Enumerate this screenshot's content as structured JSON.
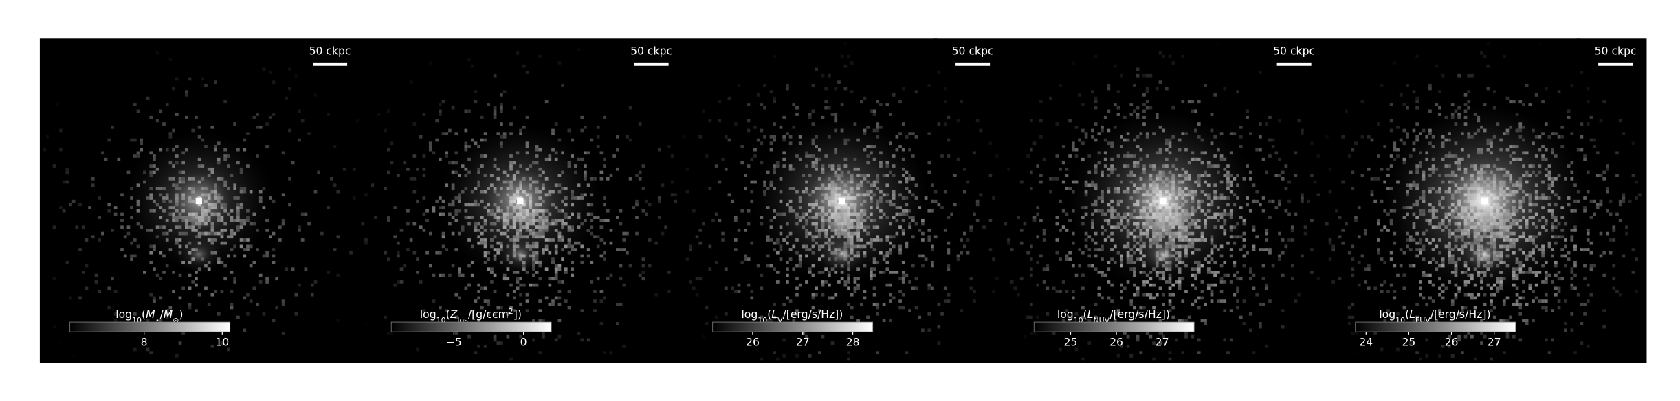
{
  "panels": [
    {
      "scale_label": "50 ckpc",
      "colorbar_label": [
        {
          "t": "log"
        },
        {
          "t": "10",
          "sub": true
        },
        {
          "t": "("
        },
        {
          "t": "M",
          "italic": true
        },
        {
          "t": "⋆",
          "sub": true
        },
        {
          "t": "/"
        },
        {
          "t": "M",
          "italic": true
        },
        {
          "t": "⊙",
          "sub": true
        },
        {
          "t": ")"
        }
      ],
      "clim": [
        6.1,
        10.2
      ],
      "ticks": [
        {
          "value": 8,
          "label": "8"
        },
        {
          "value": 10,
          "label": "10"
        }
      ]
    },
    {
      "scale_label": "50 ckpc",
      "colorbar_label": [
        {
          "t": "log"
        },
        {
          "t": "10",
          "sub": true
        },
        {
          "t": "("
        },
        {
          "t": "Z",
          "italic": true
        },
        {
          "t": "los",
          "sub": true
        },
        {
          "t": "/[g/ccm"
        },
        {
          "t": "2",
          "sup": true
        },
        {
          "t": "])"
        }
      ],
      "clim": [
        -9.5,
        2
      ],
      "ticks": [
        {
          "value": -5,
          "label": "−5"
        },
        {
          "value": 0,
          "label": "0"
        }
      ]
    },
    {
      "scale_label": "50 ckpc",
      "colorbar_label": [
        {
          "t": "log"
        },
        {
          "t": "10",
          "sub": true
        },
        {
          "t": "("
        },
        {
          "t": "L",
          "italic": true
        },
        {
          "t": "V",
          "sub": true
        },
        {
          "t": "/[erg/s/Hz])"
        }
      ],
      "clim": [
        25.2,
        28.4
      ],
      "ticks": [
        {
          "value": 26,
          "label": "26"
        },
        {
          "value": 27,
          "label": "27"
        },
        {
          "value": 28,
          "label": "28"
        }
      ]
    },
    {
      "scale_label": "50 ckpc",
      "colorbar_label": [
        {
          "t": "log"
        },
        {
          "t": "10",
          "sub": true
        },
        {
          "t": "("
        },
        {
          "t": "L",
          "italic": true
        },
        {
          "t": "NUV",
          "sub": true
        },
        {
          "t": "/[erg/s/Hz])"
        }
      ],
      "clim": [
        24.2,
        27.7
      ],
      "ticks": [
        {
          "value": 25,
          "label": "25"
        },
        {
          "value": 26,
          "label": "26"
        },
        {
          "value": 27,
          "label": "27"
        }
      ]
    },
    {
      "scale_label": "50 ckpc",
      "colorbar_label": [
        {
          "t": "log"
        },
        {
          "t": "10",
          "sub": true
        },
        {
          "t": "("
        },
        {
          "t": "L",
          "italic": true
        },
        {
          "t": "FUV",
          "sub": true
        },
        {
          "t": "/[erg/s/Hz])"
        }
      ],
      "clim": [
        23.75,
        27.5
      ],
      "ticks": [
        {
          "value": 24,
          "label": "24"
        },
        {
          "value": 25,
          "label": "25"
        },
        {
          "value": 26,
          "label": "26"
        },
        {
          "value": 27,
          "label": "27"
        }
      ]
    }
  ]
}
